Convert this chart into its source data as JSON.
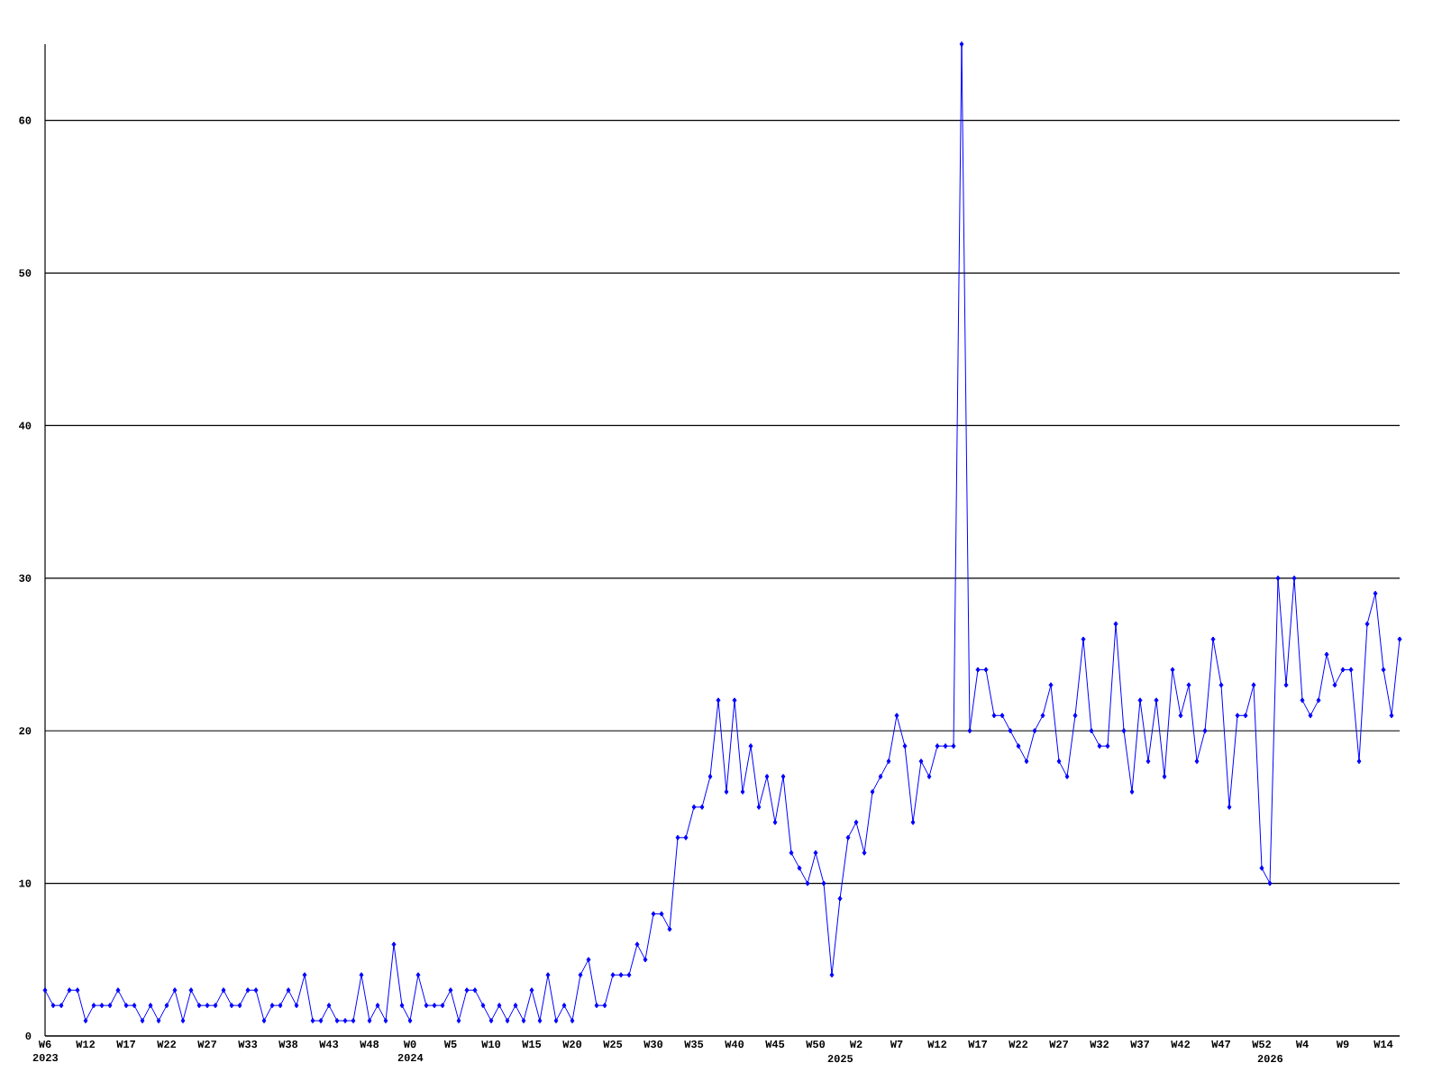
{
  "chart_data": {
    "type": "line",
    "color": "#0000ff",
    "marker": "diamond",
    "line_style": "solid",
    "grid": "y",
    "categories": [
      "W6 2023",
      null,
      null,
      null,
      null,
      "W12",
      null,
      null,
      null,
      null,
      "W17",
      null,
      null,
      null,
      null,
      "W22",
      null,
      null,
      null,
      null,
      "W27",
      null,
      null,
      null,
      null,
      "W33",
      null,
      null,
      null,
      null,
      "W38",
      null,
      null,
      null,
      null,
      "W43",
      null,
      null,
      null,
      null,
      "W48",
      null,
      null,
      null,
      null,
      "W0 2024",
      null,
      null,
      null,
      null,
      "W5",
      null,
      null,
      null,
      null,
      "W10",
      null,
      null,
      null,
      null,
      "W15",
      null,
      null,
      null,
      null,
      "W20",
      null,
      null,
      null,
      null,
      "W25",
      null,
      null,
      null,
      null,
      "W30",
      null,
      null,
      null,
      null,
      "W35",
      null,
      null,
      null,
      null,
      "W40",
      null,
      null,
      null,
      null,
      "W45",
      null,
      null,
      null,
      null,
      "W50",
      null,
      null,
      "2025",
      null,
      "W2",
      null,
      null,
      null,
      null,
      "W7",
      null,
      null,
      null,
      null,
      "W12",
      null,
      null,
      null,
      null,
      "W17",
      null,
      null,
      null,
      null,
      "W22",
      null,
      null,
      null,
      null,
      "W27",
      null,
      null,
      null,
      null,
      "W32",
      null,
      null,
      null,
      null,
      "W37",
      null,
      null,
      null,
      null,
      "W42",
      null,
      null,
      null,
      null,
      "W47",
      null,
      null,
      null,
      null,
      "W52",
      "2026",
      null,
      null,
      null,
      "W4",
      null,
      null,
      null,
      null,
      "W9",
      null,
      null,
      null,
      null,
      "W14",
      null,
      null
    ],
    "values": [
      3,
      2,
      2,
      3,
      3,
      1,
      2,
      2,
      2,
      3,
      2,
      2,
      1,
      2,
      1,
      2,
      3,
      1,
      3,
      2,
      2,
      2,
      3,
      2,
      2,
      3,
      3,
      1,
      2,
      2,
      3,
      2,
      4,
      1,
      1,
      2,
      1,
      1,
      1,
      4,
      1,
      2,
      1,
      6,
      2,
      1,
      4,
      2,
      2,
      2,
      3,
      1,
      3,
      3,
      2,
      1,
      2,
      1,
      2,
      1,
      3,
      1,
      4,
      1,
      2,
      1,
      4,
      5,
      2,
      2,
      4,
      4,
      4,
      6,
      5,
      8,
      8,
      7,
      13,
      13,
      15,
      15,
      17,
      22,
      16,
      22,
      16,
      19,
      15,
      17,
      14,
      17,
      12,
      11,
      10,
      12,
      10,
      4,
      9,
      13,
      14,
      12,
      16,
      17,
      18,
      21,
      19,
      14,
      18,
      17,
      19,
      19,
      19,
      65,
      20,
      24,
      24,
      21,
      21,
      20,
      19,
      18,
      20,
      21,
      23,
      18,
      17,
      21,
      26,
      20,
      19,
      19,
      27,
      20,
      16,
      22,
      18,
      22,
      17,
      24,
      21,
      23,
      18,
      20,
      26,
      23,
      15,
      21,
      21,
      23,
      11,
      10,
      30,
      23,
      30,
      22,
      21,
      22,
      25,
      23,
      24,
      24,
      18,
      27,
      29,
      24,
      21,
      26
    ],
    "ylim": [
      0,
      65
    ],
    "yticks": [
      0,
      10,
      20,
      30,
      40,
      50,
      60
    ]
  }
}
